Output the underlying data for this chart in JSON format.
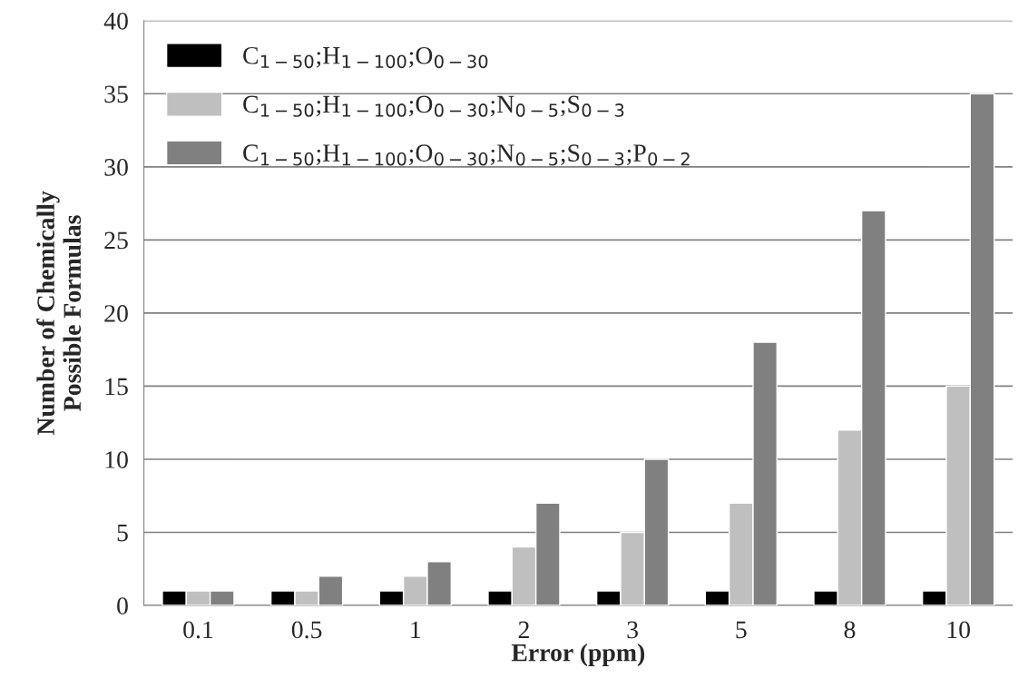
{
  "chart_data": {
    "type": "bar",
    "categories": [
      "0.1",
      "0.5",
      "1",
      "2",
      "3",
      "5",
      "8",
      "10"
    ],
    "xlabel": "Error (ppm)",
    "ylabel": "Number of Chemically\nPossible Formulas",
    "series": [
      {
        "name": "C$_{1−50}$;H$_{1−100}$;O$_{0−30}$",
        "color": "#000000",
        "values": [
          1,
          1,
          1,
          1,
          1,
          1,
          1,
          1
        ]
      },
      {
        "name": "C$_{1−50}$;H$_{1−100}$;O$_{0−30}$;N$_{0−5}$;S$_{0−3}$",
        "color": "#bfbfbf",
        "values": [
          1,
          1,
          2,
          4,
          5,
          7,
          12,
          15
        ]
      },
      {
        "name": "C$_{1−50}$;H$_{1−100}$;O$_{0−30}$;N$_{0−5}$;S$_{0−3}$;P$_{0−2}$",
        "color": "#808080",
        "values": [
          1,
          2,
          3,
          7,
          10,
          18,
          27,
          35
        ]
      }
    ],
    "ylim": [
      0,
      40
    ],
    "yticks": [
      0,
      5,
      10,
      15,
      20,
      25,
      30,
      35,
      40
    ],
    "grid": "y",
    "legend": "top left"
  }
}
